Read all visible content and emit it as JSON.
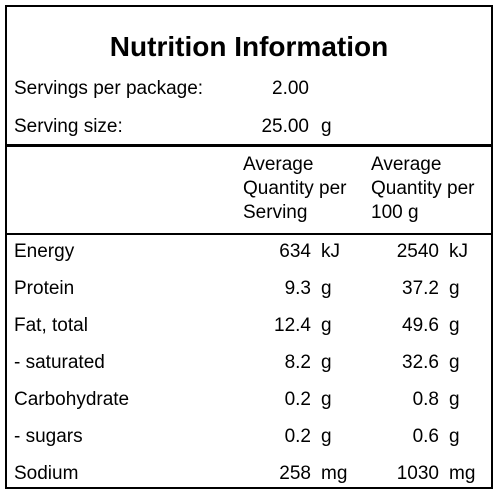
{
  "title": "Nutrition Information",
  "servings_per_package": {
    "label": "Servings per package:",
    "value": "2.00"
  },
  "serving_size": {
    "label": "Serving size:",
    "value": "25.00",
    "unit": "g"
  },
  "column_headers": {
    "per_serving": [
      "Average",
      "Quantity per",
      "Serving"
    ],
    "per_100g": [
      "Average",
      "Quantity per",
      "100 g"
    ]
  },
  "nutrients": [
    {
      "name": "Energy",
      "per_serving": "634",
      "per_serving_unit": "kJ",
      "per_100g": "2540",
      "per_100g_unit": "kJ"
    },
    {
      "name": "Protein",
      "per_serving": "9.3",
      "per_serving_unit": "g",
      "per_100g": "37.2",
      "per_100g_unit": "g"
    },
    {
      "name": "Fat, total",
      "per_serving": "12.4",
      "per_serving_unit": "g",
      "per_100g": "49.6",
      "per_100g_unit": "g"
    },
    {
      "name": "- saturated",
      "per_serving": "8.2",
      "per_serving_unit": "g",
      "per_100g": "32.6",
      "per_100g_unit": "g"
    },
    {
      "name": "Carbohydrate",
      "per_serving": "0.2",
      "per_serving_unit": "g",
      "per_100g": "0.8",
      "per_100g_unit": "g"
    },
    {
      "name": "- sugars",
      "per_serving": "0.2",
      "per_serving_unit": "g",
      "per_100g": "0.6",
      "per_100g_unit": "g"
    },
    {
      "name": "Sodium",
      "per_serving": "258",
      "per_serving_unit": "mg",
      "per_100g": "1030",
      "per_100g_unit": "mg"
    }
  ]
}
